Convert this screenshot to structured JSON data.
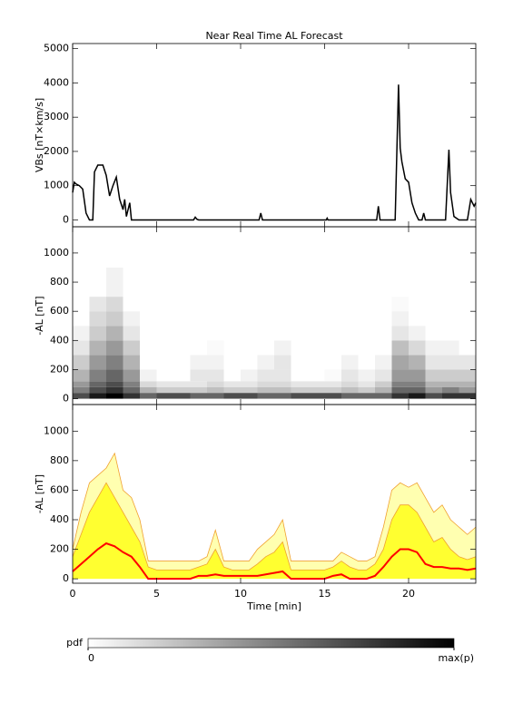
{
  "chart_data": [
    {
      "type": "line",
      "title": "Near Real Time AL Forecast",
      "ylabel": "VBs [nT×km/s]",
      "color": "#000000",
      "x": [
        0,
        0.1,
        0.2,
        0.4,
        0.6,
        0.8,
        1.0,
        1.2,
        1.3,
        1.5,
        1.8,
        2.0,
        2.2,
        2.4,
        2.6,
        2.8,
        3.0,
        3.1,
        3.2,
        3.4,
        3.5,
        7.2,
        7.3,
        7.4,
        7.5,
        11.1,
        11.2,
        11.3,
        15.1,
        15.15,
        15.2,
        18.1,
        18.2,
        18.3,
        19.2,
        19.4,
        19.5,
        19.6,
        19.8,
        20.0,
        20.2,
        20.4,
        20.6,
        20.8,
        20.9,
        21.0,
        22.2,
        22.4,
        22.5,
        22.7,
        23.0,
        23.5,
        23.7,
        23.9,
        24
      ],
      "values": [
        800,
        1100,
        1050,
        1000,
        900,
        200,
        0,
        0,
        1400,
        1600,
        1600,
        1300,
        700,
        1000,
        1250,
        600,
        300,
        600,
        100,
        500,
        0,
        0,
        80,
        20,
        0,
        0,
        200,
        0,
        0,
        50,
        0,
        0,
        400,
        0,
        0,
        3950,
        2100,
        1700,
        1200,
        1100,
        500,
        200,
        0,
        0,
        200,
        0,
        0,
        2050,
        800,
        100,
        0,
        0,
        600,
        400,
        500
      ],
      "xlim": [
        0,
        24
      ],
      "ylim": [
        -200,
        5150
      ],
      "yticks": [
        0,
        1000,
        2000,
        3000,
        4000,
        5000
      ]
    },
    {
      "type": "heatmap",
      "ylabel": "-AL [nT]",
      "xbins": [
        0,
        1,
        2,
        3,
        4,
        5,
        6,
        7,
        8,
        9,
        10,
        11,
        12,
        13,
        14,
        15,
        16,
        17,
        18,
        19,
        20,
        21,
        22,
        23,
        24
      ],
      "ybins": [
        0,
        40,
        80,
        120,
        200,
        300,
        400,
        500,
        600,
        700,
        900
      ],
      "z": [
        [
          0.7,
          0.5,
          0.4,
          0.3,
          0.2,
          0.1,
          0.05,
          0,
          0,
          0
        ],
        [
          0.9,
          0.7,
          0.6,
          0.5,
          0.4,
          0.3,
          0.2,
          0.15,
          0.1,
          0
        ],
        [
          1,
          0.8,
          0.7,
          0.6,
          0.5,
          0.4,
          0.3,
          0.2,
          0.15,
          0.05
        ],
        [
          0.8,
          0.6,
          0.5,
          0.4,
          0.3,
          0.2,
          0.1,
          0.05,
          0,
          0
        ],
        [
          0.6,
          0.3,
          0.15,
          0.05,
          0,
          0,
          0,
          0,
          0,
          0
        ],
        [
          0.7,
          0.2,
          0.1,
          0,
          0,
          0,
          0,
          0,
          0,
          0
        ],
        [
          0.7,
          0.2,
          0.1,
          0,
          0,
          0,
          0,
          0,
          0,
          0
        ],
        [
          0.6,
          0.2,
          0.1,
          0.1,
          0.05,
          0,
          0,
          0,
          0,
          0
        ],
        [
          0.6,
          0.25,
          0.15,
          0.1,
          0.05,
          0.02,
          0,
          0,
          0,
          0
        ],
        [
          0.7,
          0.2,
          0.1,
          0,
          0,
          0,
          0,
          0,
          0,
          0
        ],
        [
          0.7,
          0.2,
          0.1,
          0.05,
          0,
          0,
          0,
          0,
          0,
          0
        ],
        [
          0.6,
          0.25,
          0.15,
          0.1,
          0.05,
          0,
          0,
          0,
          0,
          0
        ],
        [
          0.6,
          0.25,
          0.15,
          0.1,
          0.1,
          0.05,
          0,
          0,
          0,
          0
        ],
        [
          0.7,
          0.2,
          0.1,
          0,
          0,
          0,
          0,
          0,
          0,
          0
        ],
        [
          0.7,
          0.2,
          0.1,
          0,
          0,
          0,
          0,
          0,
          0,
          0
        ],
        [
          0.7,
          0.2,
          0.1,
          0.02,
          0,
          0,
          0,
          0,
          0,
          0
        ],
        [
          0.6,
          0.25,
          0.15,
          0.1,
          0.05,
          0,
          0,
          0,
          0,
          0
        ],
        [
          0.6,
          0.2,
          0.1,
          0.05,
          0,
          0,
          0,
          0,
          0,
          0
        ],
        [
          0.6,
          0.3,
          0.2,
          0.1,
          0.05,
          0,
          0,
          0,
          0,
          0
        ],
        [
          0.8,
          0.6,
          0.5,
          0.4,
          0.35,
          0.25,
          0.1,
          0.05,
          0.02,
          0
        ],
        [
          0.9,
          0.6,
          0.5,
          0.4,
          0.3,
          0.15,
          0.05,
          0,
          0,
          0
        ],
        [
          0.7,
          0.4,
          0.3,
          0.2,
          0.1,
          0.05,
          0,
          0,
          0,
          0
        ],
        [
          0.8,
          0.5,
          0.3,
          0.2,
          0.1,
          0.05,
          0,
          0,
          0,
          0
        ],
        [
          0.8,
          0.4,
          0.3,
          0.2,
          0.1,
          0,
          0,
          0,
          0,
          0
        ]
      ],
      "xlim": [
        0,
        24
      ],
      "ylim": [
        -40,
        1180
      ],
      "yticks": [
        0,
        200,
        400,
        600,
        800,
        1000
      ],
      "colorbar": {
        "label": "pdf",
        "zlim": [
          0,
          1
        ],
        "ticks": [
          0,
          {
            "value": 1,
            "label": "max(p)"
          }
        ]
      }
    },
    {
      "type": "band",
      "ylabel": "-AL [nT]",
      "xlabel": "Time [min]",
      "x": [
        0,
        0.5,
        1,
        1.5,
        2,
        2.5,
        3,
        3.5,
        4,
        4.5,
        5,
        5.5,
        6,
        6.5,
        7,
        7.5,
        8,
        8.5,
        9,
        9.5,
        10,
        10.5,
        11,
        11.5,
        12,
        12.5,
        13,
        13.5,
        14,
        14.5,
        15,
        15.5,
        16,
        16.5,
        17,
        17.5,
        18,
        18.5,
        19,
        19.5,
        20,
        20.5,
        21,
        21.5,
        22,
        22.5,
        23,
        23.5,
        24
      ],
      "bands": [
        {
          "color": "#ffffb0",
          "edge_color": "#f0a030",
          "upper": [
            200,
            450,
            650,
            700,
            750,
            850,
            600,
            550,
            400,
            120,
            120,
            120,
            120,
            120,
            120,
            120,
            150,
            330,
            120,
            120,
            120,
            120,
            200,
            250,
            300,
            400,
            120,
            120,
            120,
            120,
            120,
            120,
            180,
            150,
            120,
            120,
            150,
            350,
            600,
            650,
            620,
            650,
            550,
            450,
            500,
            400,
            350,
            300,
            350
          ]
        },
        {
          "color": "#ffff30",
          "edge_color": "#f0a030",
          "upper": [
            150,
            300,
            450,
            550,
            650,
            550,
            450,
            350,
            250,
            80,
            60,
            60,
            60,
            60,
            60,
            80,
            100,
            200,
            80,
            60,
            60,
            60,
            100,
            150,
            180,
            250,
            60,
            60,
            60,
            60,
            60,
            80,
            120,
            80,
            60,
            60,
            100,
            200,
            400,
            500,
            500,
            450,
            350,
            250,
            280,
            200,
            150,
            130,
            150
          ]
        }
      ],
      "line": {
        "color": "#ff0000",
        "values": [
          50,
          100,
          150,
          200,
          240,
          220,
          180,
          150,
          80,
          0,
          0,
          0,
          0,
          0,
          0,
          20,
          20,
          30,
          20,
          20,
          20,
          20,
          20,
          30,
          40,
          50,
          0,
          0,
          0,
          0,
          0,
          20,
          30,
          0,
          0,
          0,
          20,
          80,
          150,
          200,
          200,
          180,
          100,
          80,
          80,
          70,
          70,
          60,
          70
        ]
      },
      "xlim": [
        0,
        24
      ],
      "ylim": [
        -30,
        1180
      ],
      "xticks": [
        0,
        5,
        10,
        15,
        20
      ],
      "yticks": [
        0,
        200,
        400,
        600,
        800,
        1000
      ]
    }
  ]
}
